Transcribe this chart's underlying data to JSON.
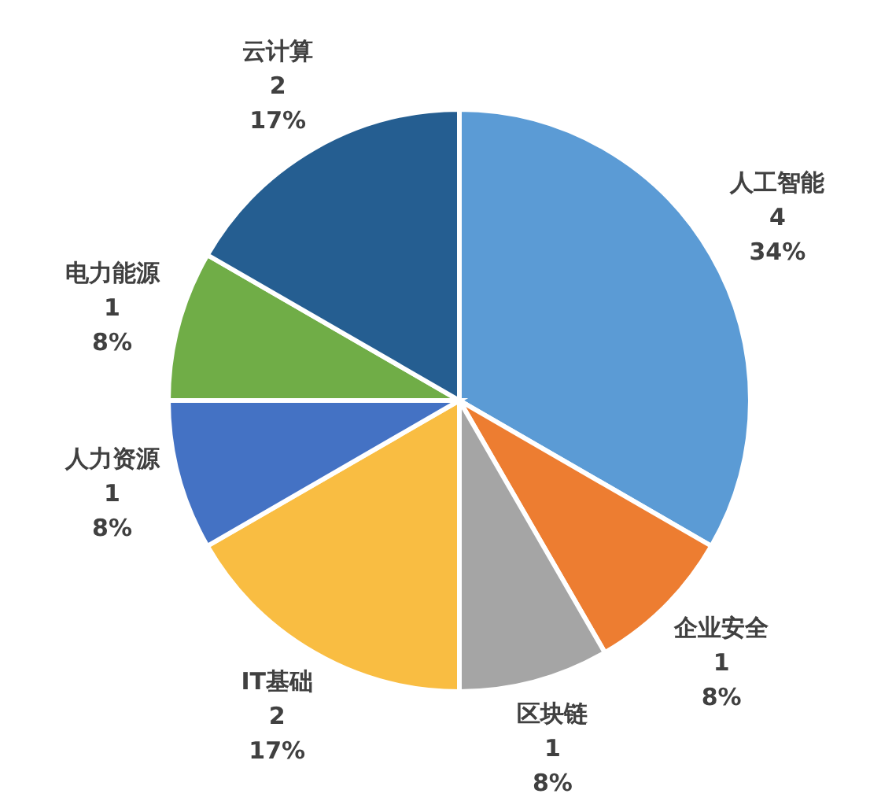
{
  "chart_data": {
    "type": "pie",
    "categories": [
      "人工智能",
      "企业安全",
      "区块链",
      "IT基础",
      "人力资源",
      "电力能源",
      "云计算"
    ],
    "values": [
      4,
      1,
      1,
      2,
      1,
      1,
      2
    ],
    "colors": [
      "#5b9bd5",
      "#ed7d31",
      "#a5a5a5",
      "#f9bd42",
      "#4472c4",
      "#70ad47",
      "#255e91"
    ],
    "data_labels": true,
    "annotations": [
      {
        "text": "34%",
        "x": "人工智能"
      },
      {
        "text": "8%",
        "x": "企业安全"
      },
      {
        "text": "8%",
        "x": "区块链"
      },
      {
        "text": "17%",
        "x": "IT基础"
      },
      {
        "text": "8%",
        "x": "人力资源"
      },
      {
        "text": "8%",
        "x": "电力能源"
      },
      {
        "text": "17%",
        "x": "云计算"
      }
    ]
  }
}
